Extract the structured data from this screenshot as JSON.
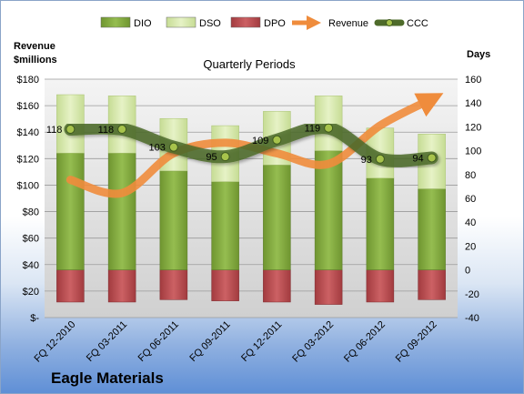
{
  "chart_data": {
    "type": "bar",
    "title": "Eagle Materials",
    "subtitle": "Quarterly Periods",
    "y_left_label": "Revenue $millions",
    "y_right_label": "Days",
    "left_axis": {
      "ylim": [
        0,
        180
      ],
      "ticks": [
        0,
        20,
        40,
        60,
        80,
        100,
        120,
        140,
        160,
        180
      ],
      "tick_labels": [
        "$-",
        "$20",
        "$40",
        "$60",
        "$80",
        "$100",
        "$120",
        "$140",
        "$160",
        "$180"
      ]
    },
    "right_axis": {
      "ylim": [
        -40,
        160
      ],
      "ticks": [
        -40,
        -20,
        0,
        20,
        40,
        60,
        80,
        100,
        120,
        140,
        160
      ]
    },
    "categories": [
      "FQ 12-2010",
      "FQ 03-2011",
      "FQ 06-2011",
      "FQ 09-2011",
      "FQ 12-2011",
      "FQ 03-2012",
      "FQ 06-2012",
      "FQ 09-2012"
    ],
    "series": [
      {
        "name": "DIO",
        "axis": "right",
        "color": "#7da33a",
        "values": [
          98,
          98,
          83,
          74,
          88,
          100,
          77,
          68
        ]
      },
      {
        "name": "DSO",
        "axis": "right",
        "color": "#d7e9ad",
        "values": [
          49,
          48,
          44,
          47,
          45,
          46,
          42,
          46
        ]
      },
      {
        "name": "DPO",
        "axis": "right",
        "color": "#b94a4e",
        "values": [
          -27,
          -27,
          -25,
          -26,
          -27,
          -29,
          -27,
          -25
        ]
      },
      {
        "name": "Revenue",
        "axis": "left",
        "color": "#ef8c3c",
        "values": [
          104,
          94,
          124,
          132,
          124,
          116,
          145,
          165
        ]
      },
      {
        "name": "CCC",
        "axis": "right",
        "color": "#4e6b2a",
        "values": [
          118,
          118,
          103,
          95,
          109,
          119,
          93,
          94
        ]
      }
    ],
    "data_labels": [
      "118",
      "118",
      "103",
      "95",
      "109",
      "119",
      "93",
      "94"
    ],
    "legend_position": "top",
    "grid": true
  }
}
